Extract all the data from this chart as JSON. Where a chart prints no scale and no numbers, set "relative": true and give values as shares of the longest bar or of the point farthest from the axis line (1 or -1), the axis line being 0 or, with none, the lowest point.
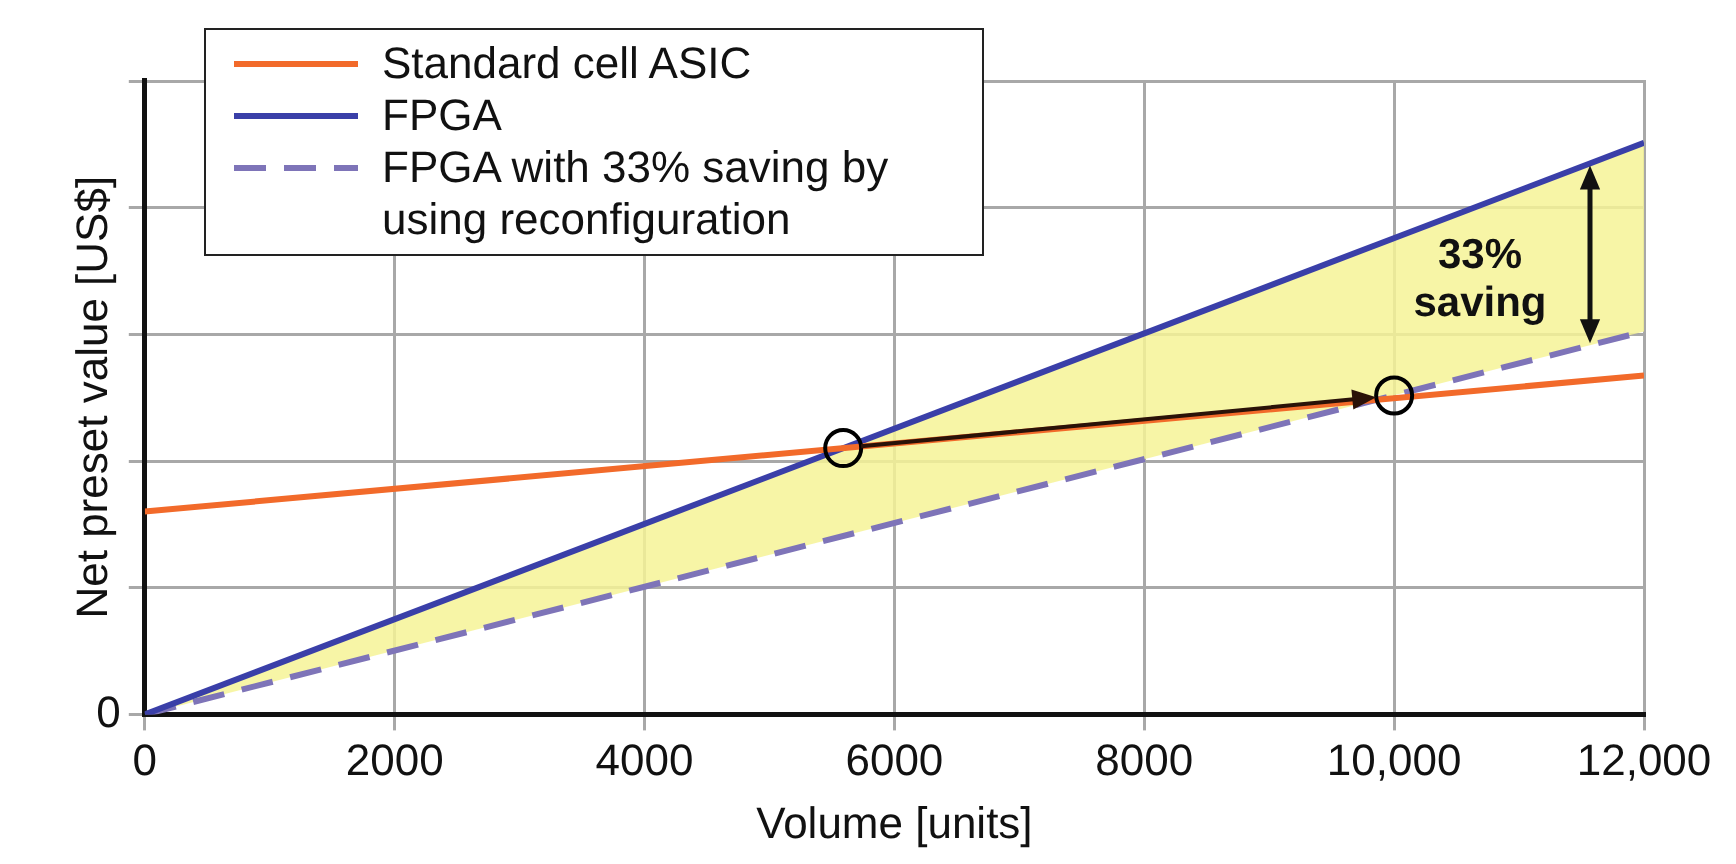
{
  "chart_data": {
    "type": "line",
    "relative": true,
    "xlabel": "Volume [units]",
    "ylabel": "Net preset value [US$]",
    "x": [
      0,
      12000
    ],
    "xlim": [
      0,
      12000
    ],
    "xticks": [
      0,
      2000,
      4000,
      6000,
      8000,
      {
        "value": 10000,
        "label": "10,000"
      },
      {
        "value": 12000,
        "label": "12,000"
      }
    ],
    "grid": true,
    "legend": "top left",
    "marker": "none",
    "series": [
      {
        "name": "Standard cell ASIC",
        "color": "#f26a2a",
        "values": [
          0.355,
          0.593
        ]
      },
      {
        "name": "FPGA",
        "color": "#3a3fa8",
        "values": [
          0,
          1
        ],
        "lower": [
          0,
          0.67
        ],
        "upper": [
          0,
          1
        ]
      },
      {
        "name": "FPGA with 33% saving by using reconfiguration",
        "color": "#7e74b8",
        "values": [
          0,
          0.67
        ],
        "line_style": "dashed"
      },
      {
        "type": "scatter",
        "marker": "circle",
        "color": "#000000",
        "x": [
          5590,
          10000
        ],
        "values": [
          0.466,
          0.558
        ]
      }
    ],
    "annotations": [
      "0",
      "33% saving"
    ]
  }
}
